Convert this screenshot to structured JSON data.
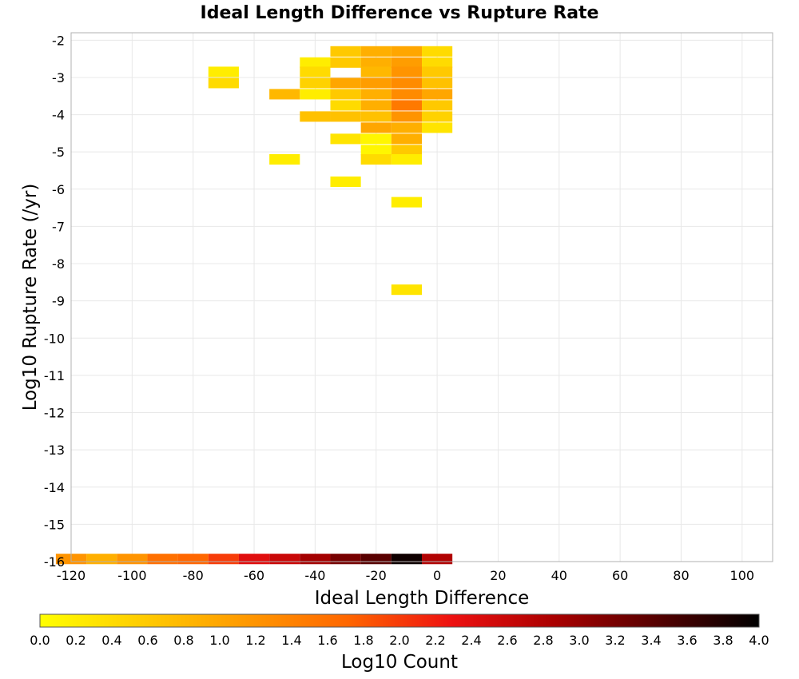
{
  "chart_data": {
    "type": "heatmap",
    "title": "Ideal Length Difference vs Rupture Rate",
    "xlabel": "Ideal Length Difference",
    "ylabel": "Log10 Rupture Rate (/yr)",
    "xlim": [
      -120,
      110
    ],
    "ylim": [
      -16,
      -1.8
    ],
    "xticks": [
      -120,
      -100,
      -80,
      -60,
      -40,
      -20,
      0,
      20,
      40,
      60,
      80,
      100
    ],
    "yticks": [
      -2,
      -3,
      -4,
      -5,
      -6,
      -7,
      -8,
      -9,
      -10,
      -11,
      -12,
      -13,
      -14,
      -15,
      -16
    ],
    "grid": true,
    "bin_width": 10,
    "bin_height": 0.28,
    "cells": [
      {
        "x": -30,
        "y": -2.3,
        "v": 0.6
      },
      {
        "x": -20,
        "y": -2.3,
        "v": 0.9
      },
      {
        "x": -10,
        "y": -2.3,
        "v": 1.0
      },
      {
        "x": 0,
        "y": -2.3,
        "v": 0.4
      },
      {
        "x": -40,
        "y": -2.6,
        "v": 0.2
      },
      {
        "x": -30,
        "y": -2.6,
        "v": 0.6
      },
      {
        "x": -20,
        "y": -2.6,
        "v": 0.9
      },
      {
        "x": -10,
        "y": -2.6,
        "v": 1.1
      },
      {
        "x": 0,
        "y": -2.6,
        "v": 0.4
      },
      {
        "x": -70,
        "y": -2.85,
        "v": 0.2
      },
      {
        "x": -40,
        "y": -2.85,
        "v": 0.4
      },
      {
        "x": -20,
        "y": -2.85,
        "v": 0.8
      },
      {
        "x": -10,
        "y": -2.85,
        "v": 1.2
      },
      {
        "x": 0,
        "y": -2.85,
        "v": 0.6
      },
      {
        "x": -70,
        "y": -3.15,
        "v": 0.4
      },
      {
        "x": -40,
        "y": -3.15,
        "v": 0.5
      },
      {
        "x": -30,
        "y": -3.15,
        "v": 1.0
      },
      {
        "x": -20,
        "y": -3.15,
        "v": 1.1
      },
      {
        "x": -10,
        "y": -3.15,
        "v": 1.3
      },
      {
        "x": 0,
        "y": -3.15,
        "v": 0.7
      },
      {
        "x": -50,
        "y": -3.45,
        "v": 0.8
      },
      {
        "x": -40,
        "y": -3.45,
        "v": 0.2
      },
      {
        "x": -30,
        "y": -3.45,
        "v": 0.6
      },
      {
        "x": -20,
        "y": -3.45,
        "v": 0.9
      },
      {
        "x": -10,
        "y": -3.45,
        "v": 1.3
      },
      {
        "x": 0,
        "y": -3.45,
        "v": 1.0
      },
      {
        "x": -30,
        "y": -3.75,
        "v": 0.4
      },
      {
        "x": -20,
        "y": -3.75,
        "v": 0.9
      },
      {
        "x": -10,
        "y": -3.75,
        "v": 1.5
      },
      {
        "x": 0,
        "y": -3.75,
        "v": 0.6
      },
      {
        "x": -40,
        "y": -4.05,
        "v": 0.7
      },
      {
        "x": -30,
        "y": -4.05,
        "v": 0.7
      },
      {
        "x": -20,
        "y": -4.05,
        "v": 0.7
      },
      {
        "x": -10,
        "y": -4.05,
        "v": 1.2
      },
      {
        "x": 0,
        "y": -4.05,
        "v": 0.5
      },
      {
        "x": -20,
        "y": -4.35,
        "v": 1.0
      },
      {
        "x": -10,
        "y": -4.35,
        "v": 0.9
      },
      {
        "x": 0,
        "y": -4.35,
        "v": 0.3
      },
      {
        "x": -30,
        "y": -4.65,
        "v": 0.3
      },
      {
        "x": -20,
        "y": -4.65,
        "v": 0.1
      },
      {
        "x": -10,
        "y": -4.65,
        "v": 0.9
      },
      {
        "x": -20,
        "y": -4.95,
        "v": 0.1
      },
      {
        "x": -10,
        "y": -4.95,
        "v": 0.6
      },
      {
        "x": -50,
        "y": -5.2,
        "v": 0.2
      },
      {
        "x": -20,
        "y": -5.2,
        "v": 0.4
      },
      {
        "x": -10,
        "y": -5.2,
        "v": 0.2
      },
      {
        "x": -30,
        "y": -5.8,
        "v": 0.2
      },
      {
        "x": -10,
        "y": -6.35,
        "v": 0.2
      },
      {
        "x": -10,
        "y": -8.7,
        "v": 0.3
      },
      {
        "x": -120,
        "y": -15.93,
        "v": 1.2
      },
      {
        "x": -110,
        "y": -15.93,
        "v": 0.9
      },
      {
        "x": -100,
        "y": -15.93,
        "v": 1.2
      },
      {
        "x": -90,
        "y": -15.93,
        "v": 1.6
      },
      {
        "x": -80,
        "y": -15.93,
        "v": 1.7
      },
      {
        "x": -70,
        "y": -15.93,
        "v": 2.0
      },
      {
        "x": -60,
        "y": -15.93,
        "v": 2.4
      },
      {
        "x": -50,
        "y": -15.93,
        "v": 2.6
      },
      {
        "x": -40,
        "y": -15.93,
        "v": 2.9
      },
      {
        "x": -30,
        "y": -15.93,
        "v": 3.2
      },
      {
        "x": -20,
        "y": -15.93,
        "v": 3.4
      },
      {
        "x": -10,
        "y": -15.93,
        "v": 3.9
      },
      {
        "x": 0,
        "y": -15.93,
        "v": 2.8
      }
    ],
    "colorbar": {
      "label": "Log10 Count",
      "min": 0.0,
      "max": 4.0,
      "ticks": [
        "0.0",
        "0.2",
        "0.4",
        "0.6",
        "0.8",
        "1.0",
        "1.2",
        "1.4",
        "1.6",
        "1.8",
        "2.0",
        "2.2",
        "2.4",
        "2.6",
        "2.8",
        "3.0",
        "3.2",
        "3.4",
        "3.6",
        "3.8",
        "4.0"
      ],
      "colors": [
        "#ffff00",
        "#ffcc00",
        "#ff9900",
        "#ff6600",
        "#ee1111",
        "#aa0000",
        "#550000",
        "#000000"
      ]
    }
  }
}
